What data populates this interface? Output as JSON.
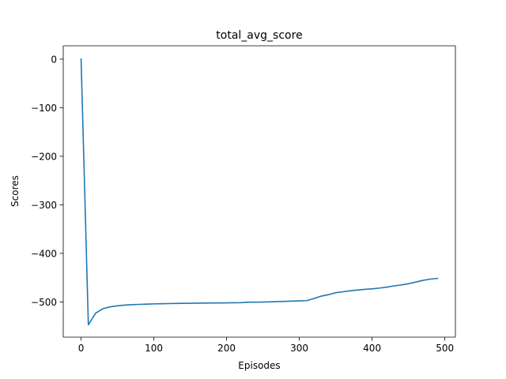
{
  "chart_data": {
    "type": "line",
    "title": "total_avg_score",
    "xlabel": "Episodes",
    "ylabel": "Scores",
    "xlim": [
      -24.5,
      514.5
    ],
    "ylim": [
      -572.5,
      27.5
    ],
    "xticks": [
      0,
      100,
      200,
      300,
      400,
      500
    ],
    "yticks": [
      0,
      -100,
      -200,
      -300,
      -400,
      -500
    ],
    "xtick_labels": [
      "0",
      "100",
      "200",
      "300",
      "400",
      "500"
    ],
    "ytick_labels": [
      "0",
      "−100",
      "−200",
      "−300",
      "−400",
      "−500"
    ],
    "grid": false,
    "legend": "none",
    "series": [
      {
        "color": "#1f77b4",
        "x": [
          0,
          10,
          20,
          30,
          40,
          50,
          60,
          70,
          80,
          90,
          100,
          110,
          120,
          130,
          140,
          150,
          160,
          170,
          180,
          190,
          200,
          210,
          220,
          230,
          240,
          250,
          260,
          270,
          280,
          290,
          300,
          310,
          320,
          330,
          340,
          350,
          360,
          370,
          380,
          390,
          400,
          410,
          420,
          430,
          440,
          450,
          460,
          470,
          480,
          490
        ],
        "y": [
          0,
          -547,
          -523,
          -514,
          -510,
          -508,
          -506.5,
          -505.5,
          -505,
          -504.5,
          -504,
          -503.7,
          -503.4,
          -503.1,
          -502.9,
          -502.7,
          -502.5,
          -502.3,
          -502.1,
          -502,
          -501.8,
          -501.7,
          -501.5,
          -500.5,
          -500.5,
          -500.2,
          -499.8,
          -499.2,
          -498.8,
          -498.2,
          -497.8,
          -497.3,
          -493,
          -488,
          -485,
          -481,
          -479,
          -477,
          -475.5,
          -474,
          -473,
          -471.5,
          -469.5,
          -467,
          -465,
          -462.5,
          -459,
          -455.5,
          -453,
          -451.5
        ]
      }
    ]
  }
}
